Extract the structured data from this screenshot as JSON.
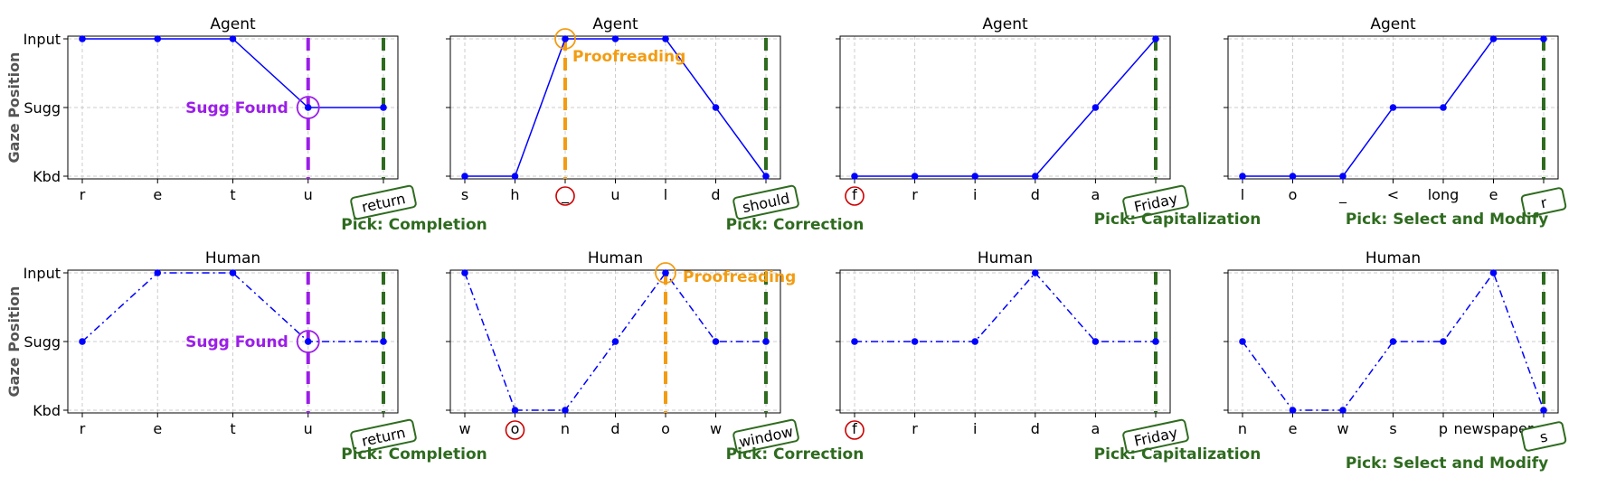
{
  "y_axis": {
    "label": "Gaze Position",
    "ticks": [
      "Kbd",
      "Sugg",
      "Input"
    ]
  },
  "colors": {
    "line": "#0000ff",
    "pick": "#2e6b1f",
    "sugg_found": "#9b1ee8",
    "proofreading": "#f39c12",
    "error": "#cc0000",
    "grid": "#cccccc"
  },
  "chart_data": [
    {
      "type": "line",
      "title": "Agent",
      "linestyle": "solid",
      "categories": [
        "r",
        "e",
        "t",
        "u",
        "return"
      ],
      "values": [
        2,
        2,
        2,
        1,
        1
      ],
      "ylim": [
        0,
        2
      ],
      "grid": true,
      "pick_label": "Pick: Completion",
      "marker": {
        "type": "sugg",
        "index": 3,
        "label": "Sugg Found"
      },
      "error_index": null
    },
    {
      "type": "line",
      "title": "Agent",
      "linestyle": "solid",
      "categories": [
        "s",
        "h",
        "_",
        "u",
        "l",
        "d",
        "should"
      ],
      "values": [
        0,
        0,
        2,
        2,
        2,
        1,
        0
      ],
      "ylim": [
        0,
        2
      ],
      "grid": true,
      "pick_label": "Pick: Correction",
      "marker": {
        "type": "proof",
        "index": 2,
        "label": "Proofreading"
      },
      "error_index": 2
    },
    {
      "type": "line",
      "title": "Agent",
      "linestyle": "solid",
      "categories": [
        "f",
        "r",
        "i",
        "d",
        "a",
        "Friday"
      ],
      "values": [
        0,
        0,
        0,
        0,
        1,
        2
      ],
      "ylim": [
        0,
        2
      ],
      "grid": true,
      "pick_label": "Pick: Capitalization",
      "marker": null,
      "error_index": 0
    },
    {
      "type": "line",
      "title": "Agent",
      "linestyle": "solid",
      "categories": [
        "l",
        "o",
        "_",
        "<",
        "long",
        "e",
        "r"
      ],
      "values": [
        0,
        0,
        0,
        1,
        1,
        2,
        2
      ],
      "ylim": [
        0,
        2
      ],
      "grid": true,
      "pick_label": "Pick: Select and Modify",
      "marker": null,
      "error_index": null
    },
    {
      "type": "line",
      "title": "Human",
      "linestyle": "dashdot",
      "categories": [
        "r",
        "e",
        "t",
        "u",
        "return"
      ],
      "values": [
        1,
        2,
        2,
        1,
        1
      ],
      "ylim": [
        0,
        2
      ],
      "grid": true,
      "pick_label": "Pick: Completion",
      "marker": {
        "type": "sugg",
        "index": 3,
        "label": "Sugg Found"
      },
      "error_index": null
    },
    {
      "type": "line",
      "title": "Human",
      "linestyle": "dashdot",
      "categories": [
        "w",
        "o",
        "n",
        "d",
        "o",
        "w",
        "window"
      ],
      "values": [
        2,
        0,
        0,
        1,
        2,
        1,
        1
      ],
      "ylim": [
        0,
        2
      ],
      "grid": true,
      "pick_label": "Pick: Correction",
      "marker": {
        "type": "proof",
        "index": 4,
        "label": "Proofreading"
      },
      "error_index": 1
    },
    {
      "type": "line",
      "title": "Human",
      "linestyle": "dashdot",
      "categories": [
        "f",
        "r",
        "i",
        "d",
        "a",
        "Friday"
      ],
      "values": [
        1,
        1,
        1,
        2,
        1,
        1
      ],
      "ylim": [
        0,
        2
      ],
      "grid": true,
      "pick_label": "Pick: Capitalization",
      "marker": null,
      "error_index": 0
    },
    {
      "type": "line",
      "title": "Human",
      "linestyle": "dashdot",
      "categories": [
        "n",
        "e",
        "w",
        "s",
        "p",
        "newspaper",
        "s"
      ],
      "values": [
        1,
        0,
        0,
        1,
        1,
        2,
        0
      ],
      "ylim": [
        0,
        2
      ],
      "grid": true,
      "pick_label": "Pick: Select and Modify",
      "marker": null,
      "error_index": null
    }
  ]
}
